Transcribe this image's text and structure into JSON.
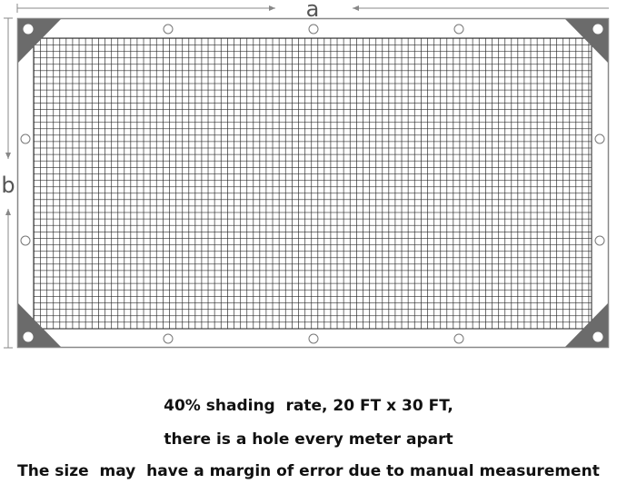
{
  "diagram": {
    "dimension_a_label": "a",
    "dimension_b_label": "b",
    "colors": {
      "outline": "#888888",
      "corner": "#6b6b6b",
      "mesh": "#222222"
    }
  },
  "captions": [
    "40% shading  rate, 20 FT x 30 FT,",
    "there is a hole every meter apart",
    "The size  may  have a margin of error due to manual measurement"
  ]
}
